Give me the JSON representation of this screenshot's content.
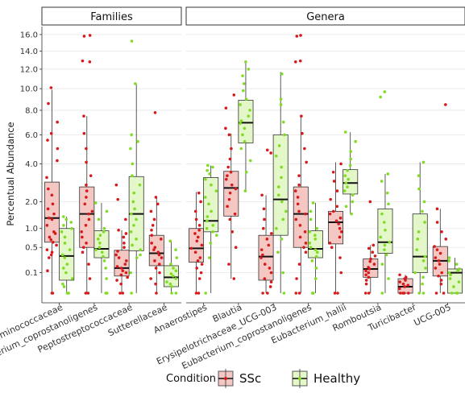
{
  "chart_data": {
    "type": "boxplot",
    "ylabel": "Percentual Abundance",
    "y_scale": "sqrt",
    "ylim": [
      0,
      17
    ],
    "yticks": [
      0.1,
      0.5,
      1.0,
      2.0,
      4.0,
      6.0,
      8.0,
      10.0,
      12.0,
      14.0,
      16.0
    ],
    "ytick_labels": [
      "0.1",
      "0.5",
      "1.0",
      "2.0",
      "4.0",
      "6.0",
      "8.0",
      "10.0",
      "12.0",
      "14.0",
      "16.0"
    ],
    "grid": true,
    "legend": {
      "title": "Condition",
      "position": "bottom",
      "entries": [
        {
          "name": "SSc",
          "fill": "#f4c7c3",
          "point": "#d7191c"
        },
        {
          "name": "Healthy",
          "fill": "#e4f7c9",
          "point": "#7fdc22"
        }
      ]
    },
    "facets": [
      {
        "title": "Families",
        "categories": [
          {
            "label": "Acidaminococcaceae",
            "SSc": {
              "whislo": 0.0,
              "q1": 0.62,
              "med": 1.35,
              "q3": 2.95,
              "whishi": 9.9,
              "points": [
                0.0,
                0.0,
                0.12,
                0.3,
                0.35,
                0.4,
                0.45,
                0.55,
                0.62,
                0.68,
                0.75,
                0.85,
                0.9,
                1.1,
                1.3,
                1.35,
                1.5,
                1.7,
                1.9,
                2.3,
                2.6,
                3.2,
                4.2,
                5.0,
                5.6,
                6.1,
                7.0,
                8.6,
                10.1
              ]
            },
            "Healthy": {
              "whislo": 0.0,
              "q1": 0.04,
              "med": 0.33,
              "q3": 1.0,
              "whishi": 1.4,
              "points": [
                0.0,
                0.0,
                0.01,
                0.02,
                0.05,
                0.1,
                0.15,
                0.2,
                0.3,
                0.35,
                0.45,
                0.6,
                0.75,
                0.9,
                1.0,
                1.1,
                1.2,
                1.3,
                1.4
              ]
            }
          },
          {
            "label": "Eubacterium_coprostanoligenes",
            "SSc": {
              "whislo": 0.0,
              "q1": 0.5,
              "med": 1.5,
              "q3": 2.7,
              "whishi": 7.5,
              "points": [
                0.0,
                0.0,
                0.05,
                0.2,
                0.4,
                0.5,
                0.6,
                0.75,
                0.9,
                1.1,
                1.3,
                1.5,
                1.6,
                1.9,
                2.2,
                2.5,
                2.8,
                3.3,
                4.1,
                5.0,
                6.1,
                7.5,
                12.8,
                12.9,
                15.8,
                15.9
              ]
            },
            "Healthy": {
              "whislo": 0.0,
              "q1": 0.3,
              "med": 0.47,
              "q3": 0.93,
              "whishi": 1.95,
              "points": [
                0.0,
                0.0,
                0.05,
                0.15,
                0.25,
                0.32,
                0.4,
                0.45,
                0.5,
                0.6,
                0.7,
                0.8,
                0.9,
                1.0,
                1.3,
                1.6,
                1.95
              ]
            }
          },
          {
            "label": "Peptostreptococcaceae",
            "SSc": {
              "whislo": 0.0,
              "q1": 0.07,
              "med": 0.15,
              "q3": 0.44,
              "whishi": 0.95,
              "points": [
                0.0,
                0.0,
                0.02,
                0.04,
                0.06,
                0.08,
                0.1,
                0.12,
                0.15,
                0.17,
                0.2,
                0.25,
                0.3,
                0.35,
                0.42,
                0.5,
                0.6,
                0.75,
                0.85,
                0.95,
                1.3,
                2.1,
                2.8
              ]
            },
            "Healthy": {
              "whislo": 0.0,
              "q1": 0.43,
              "med": 1.5,
              "q3": 3.25,
              "whishi": 10.5,
              "points": [
                0.0,
                0.1,
                0.3,
                0.35,
                0.45,
                0.55,
                0.7,
                0.9,
                1.1,
                1.3,
                1.5,
                1.7,
                2.0,
                2.4,
                2.8,
                3.3,
                4.0,
                5.0,
                5.5,
                6.0,
                10.5,
                15.2
              ]
            }
          },
          {
            "label": "Sutterellaceae",
            "SSc": {
              "whislo": 0.0,
              "q1": 0.18,
              "med": 0.38,
              "q3": 0.8,
              "whishi": 2.2,
              "points": [
                0.0,
                0.02,
                0.05,
                0.1,
                0.15,
                0.2,
                0.25,
                0.3,
                0.35,
                0.4,
                0.45,
                0.5,
                0.6,
                0.7,
                0.8,
                0.95,
                1.1,
                1.3,
                1.6,
                1.9,
                2.2,
                7.8
              ]
            },
            "Healthy": {
              "whislo": 0.0,
              "q1": 0.01,
              "med": 0.06,
              "q3": 0.18,
              "whishi": 0.65,
              "points": [
                0.0,
                0.0,
                0.01,
                0.02,
                0.03,
                0.05,
                0.07,
                0.09,
                0.12,
                0.15,
                0.2,
                0.3,
                0.45,
                0.65
              ]
            }
          }
        ]
      },
      {
        "title": "Genera",
        "categories": [
          {
            "label": "Anaerostipes",
            "SSc": {
              "whislo": 0.0,
              "q1": 0.23,
              "med": 0.48,
              "q3": 1.0,
              "whishi": 2.45,
              "points": [
                0.0,
                0.0,
                0.05,
                0.1,
                0.15,
                0.2,
                0.25,
                0.3,
                0.4,
                0.48,
                0.55,
                0.65,
                0.75,
                0.85,
                0.95,
                1.1,
                1.3,
                1.6,
                2.0,
                2.4
              ]
            },
            "Healthy": {
              "whislo": 0.0,
              "q1": 0.9,
              "med": 1.25,
              "q3": 3.2,
              "whishi": 3.9,
              "points": [
                0.0,
                0.3,
                0.6,
                0.8,
                0.9,
                1.0,
                1.1,
                1.25,
                1.4,
                1.6,
                1.9,
                2.2,
                2.5,
                2.8,
                3.1,
                3.4,
                3.6,
                3.8,
                3.9
              ]
            }
          },
          {
            "label": "Blautia",
            "SSc": {
              "whislo": 0.05,
              "q1": 1.42,
              "med": 2.65,
              "q3": 3.55,
              "whishi": 6.1,
              "points": [
                0.05,
                0.2,
                0.5,
                0.9,
                1.3,
                1.5,
                1.8,
                2.1,
                2.4,
                2.6,
                2.8,
                3.1,
                3.3,
                3.5,
                3.8,
                4.3,
                5.0,
                6.0,
                6.5,
                8.2,
                9.4
              ]
            },
            "Healthy": {
              "whislo": 2.5,
              "q1": 5.4,
              "med": 6.95,
              "q3": 8.9,
              "whishi": 12.9,
              "points": [
                2.5,
                3.5,
                4.2,
                5.0,
                5.5,
                6.0,
                6.5,
                6.9,
                7.1,
                7.5,
                8.0,
                8.5,
                9.0,
                9.8,
                10.5,
                11.3,
                12.0,
                12.8
              ]
            }
          },
          {
            "label": "Erysipelotrichaceae_UCG-003",
            "SSc": {
              "whislo": 0.0,
              "q1": 0.04,
              "med": 0.32,
              "q3": 0.8,
              "whishi": 2.3,
              "points": [
                0.0,
                0.0,
                0.01,
                0.03,
                0.05,
                0.1,
                0.15,
                0.2,
                0.3,
                0.35,
                0.45,
                0.55,
                0.7,
                0.85,
                1.0,
                1.3,
                1.7,
                2.3,
                4.7,
                4.9
              ]
            },
            "Healthy": {
              "whislo": 0.0,
              "q1": 0.8,
              "med": 2.1,
              "q3": 6.0,
              "whishi": 11.7,
              "points": [
                0.0,
                0.1,
                0.4,
                0.7,
                1.0,
                1.3,
                1.6,
                2.0,
                2.3,
                2.7,
                3.2,
                3.8,
                4.5,
                5.2,
                6.0,
                7.0,
                8.5,
                9.0,
                11.5
              ]
            }
          },
          {
            "label": "Eubacterium_coprostanoligenes",
            "SSc": {
              "whislo": 0.0,
              "q1": 0.5,
              "med": 1.5,
              "q3": 2.7,
              "whishi": 7.5,
              "points": [
                0.0,
                0.0,
                0.05,
                0.2,
                0.4,
                0.5,
                0.6,
                0.75,
                0.9,
                1.1,
                1.3,
                1.5,
                1.6,
                1.9,
                2.2,
                2.5,
                2.8,
                3.3,
                4.1,
                5.0,
                6.1,
                7.5,
                12.8,
                12.9,
                15.8,
                15.9
              ]
            },
            "Healthy": {
              "whislo": 0.0,
              "q1": 0.3,
              "med": 0.47,
              "q3": 0.93,
              "whishi": 1.95,
              "points": [
                0.0,
                0.0,
                0.05,
                0.15,
                0.25,
                0.32,
                0.4,
                0.45,
                0.5,
                0.6,
                0.7,
                0.8,
                0.9,
                1.0,
                1.3,
                1.6,
                1.95
              ]
            }
          },
          {
            "label": "Eubacterium_hallii",
            "SSc": {
              "whislo": 0.0,
              "q1": 0.58,
              "med": 1.2,
              "q3": 1.6,
              "whishi": 4.1,
              "points": [
                0.0,
                0.0,
                0.1,
                0.3,
                0.5,
                0.6,
                0.75,
                0.9,
                1.0,
                1.15,
                1.25,
                1.35,
                1.5,
                1.6,
                1.8,
                2.1,
                2.5,
                3.0,
                3.5,
                4.0
              ]
            },
            "Healthy": {
              "whislo": 1.5,
              "q1": 2.35,
              "med": 2.9,
              "q3": 3.65,
              "whishi": 6.2,
              "points": [
                1.5,
                1.8,
                2.0,
                2.3,
                2.5,
                2.7,
                2.9,
                3.1,
                3.3,
                3.6,
                3.9,
                4.3,
                4.8,
                5.5,
                6.2
              ]
            }
          },
          {
            "label": "Romboutsia",
            "SSc": {
              "whislo": 0.0,
              "q1": 0.06,
              "med": 0.14,
              "q3": 0.28,
              "whishi": 0.55,
              "points": [
                0.0,
                0.0,
                0.02,
                0.04,
                0.06,
                0.08,
                0.1,
                0.12,
                0.14,
                0.16,
                0.2,
                0.24,
                0.28,
                0.33,
                0.4,
                0.48,
                0.55,
                2.0
              ]
            },
            "Healthy": {
              "whislo": 0.0,
              "q1": 0.38,
              "med": 0.62,
              "q3": 1.7,
              "whishi": 3.4,
              "points": [
                0.0,
                0.05,
                0.2,
                0.35,
                0.45,
                0.55,
                0.62,
                0.75,
                0.95,
                1.2,
                1.5,
                1.9,
                2.4,
                3.0,
                3.4,
                9.2,
                9.7
              ]
            }
          },
          {
            "label": "Turicibacter",
            "SSc": {
              "whislo": 0.0,
              "q1": 0.0,
              "med": 0.01,
              "q3": 0.05,
              "whishi": 0.08,
              "points": [
                0.0,
                0.0,
                0.0,
                0.0,
                0.005,
                0.01,
                0.015,
                0.02,
                0.03,
                0.04,
                0.05,
                0.06,
                0.08
              ]
            },
            "Healthy": {
              "whislo": 0.0,
              "q1": 0.1,
              "med": 0.32,
              "q3": 1.5,
              "whishi": 4.1,
              "points": [
                0.0,
                0.0,
                0.02,
                0.06,
                0.1,
                0.15,
                0.25,
                0.32,
                0.45,
                0.7,
                0.9,
                1.2,
                1.6,
                2.0,
                2.6,
                3.3,
                4.1
              ]
            }
          },
          {
            "label": "UCG-005",
            "SSc": {
              "whislo": 0.0,
              "q1": 0.07,
              "med": 0.25,
              "q3": 0.52,
              "whishi": 1.7,
              "points": [
                0.0,
                0.0,
                0.02,
                0.04,
                0.07,
                0.1,
                0.15,
                0.2,
                0.25,
                0.3,
                0.38,
                0.45,
                0.52,
                0.7,
                0.9,
                1.2,
                1.7,
                8.5
              ]
            },
            "Healthy": {
              "whislo": 0.0,
              "q1": 0.0,
              "med": 0.1,
              "q3": 0.14,
              "whishi": 0.3,
              "points": [
                0.0,
                0.0,
                0.0,
                0.01,
                0.03,
                0.05,
                0.08,
                0.1,
                0.12,
                0.14,
                0.2,
                0.25,
                0.3
              ]
            }
          }
        ]
      }
    ]
  }
}
